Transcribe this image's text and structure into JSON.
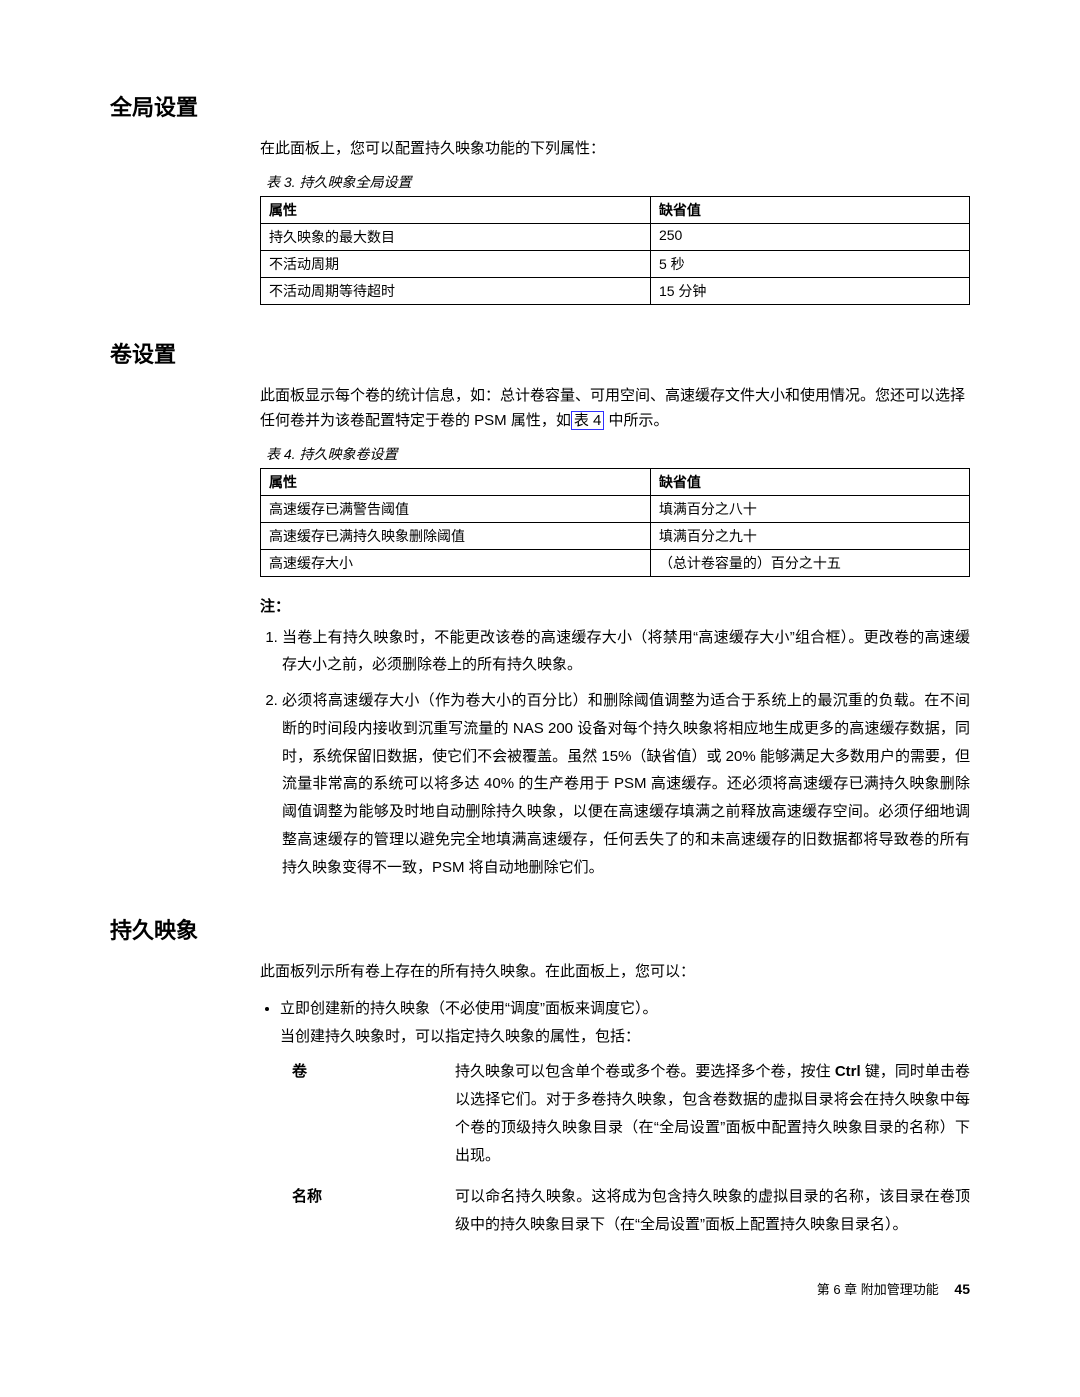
{
  "sections": {
    "global": {
      "heading": "全局设置",
      "intro": "在此面板上，您可以配置持久映象功能的下列属性：",
      "table_caption": "表 3. 持久映象全局设置",
      "th_attr": "属性",
      "th_default": "缺省值",
      "rows": [
        {
          "attr": "持久映象的最大数目",
          "def": "250"
        },
        {
          "attr": "不活动周期",
          "def": "5 秒"
        },
        {
          "attr": "不活动周期等待超时",
          "def": "15 分钟"
        }
      ]
    },
    "volume": {
      "heading": "卷设置",
      "intro_a": "此面板显示每个卷的统计信息，如：总计卷容量、可用空间、高速缓存文件大小和使用情况。您还可以选择任何卷并为该卷配置特定于卷的 PSM 属性，如",
      "intro_link": "表 4",
      "intro_b": " 中所示。",
      "table_caption": "表 4. 持久映象卷设置",
      "th_attr": "属性",
      "th_default": "缺省值",
      "rows": [
        {
          "attr": "高速缓存已满警告阈值",
          "def": "填满百分之八十"
        },
        {
          "attr": "高速缓存已满持久映象删除阈值",
          "def": "填满百分之九十"
        },
        {
          "attr": "高速缓存大小",
          "def": "（总计卷容量的）百分之十五"
        }
      ],
      "notes_label": "注：",
      "notes": [
        "当卷上有持久映象时，不能更改该卷的高速缓存大小（将禁用“高速缓存大小”组合框）。更改卷的高速缓存大小之前，必须删除卷上的所有持久映象。",
        "必须将高速缓存大小（作为卷大小的百分比）和删除阈值调整为适合于系统上的最沉重的负载。在不间断的时间段内接收到沉重写流量的 NAS 200 设备对每个持久映象将相应地生成更多的高速缓存数据，同时，系统保留旧数据，使它们不会被覆盖。虽然 15%（缺省值）或 20% 能够满足大多数用户的需要，但流量非常高的系统可以将多达 40% 的生产卷用于 PSM 高速缓存。还必须将高速缓存已满持久映象删除阈值调整为能够及时地自动删除持久映象，以便在高速缓存填满之前释放高速缓存空间。必须仔细地调整高速缓存的管理以避免完全地填满高速缓存，任何丢失了的和未高速缓存的旧数据都将导致卷的所有持久映象变得不一致，PSM 将自动地删除它们。"
      ]
    },
    "persistent": {
      "heading": "持久映象",
      "intro": "此面板列示所有卷上存在的所有持久映象。在此面板上，您可以：",
      "bullet_line1": "立即创建新的持久映象（不必使用“调度”面板来调度它）。",
      "bullet_line2": "当创建持久映象时，可以指定持久映象的属性，包括：",
      "defs": [
        {
          "term": "卷",
          "desc_a": "持久映象可以包含单个卷或多个卷。要选择多个卷，按住 ",
          "desc_bold": "Ctrl",
          "desc_b": " 键，同时单击卷以选择它们。对于多卷持久映象，包含卷数据的虚拟目录将会在持久映象中每个卷的顶级持久映象目录（在“全局设置”面板中配置持久映象目录的名称）下出现。"
        },
        {
          "term": "名称",
          "desc": "可以命名持久映象。这将成为包含持久映象的虚拟目录的名称，该目录在卷顶级中的持久映象目录下（在“全局设置”面板上配置持久映象目录名）。"
        }
      ]
    }
  },
  "footer": {
    "chapter": "第 6 章 附加管理功能",
    "page": "45"
  }
}
